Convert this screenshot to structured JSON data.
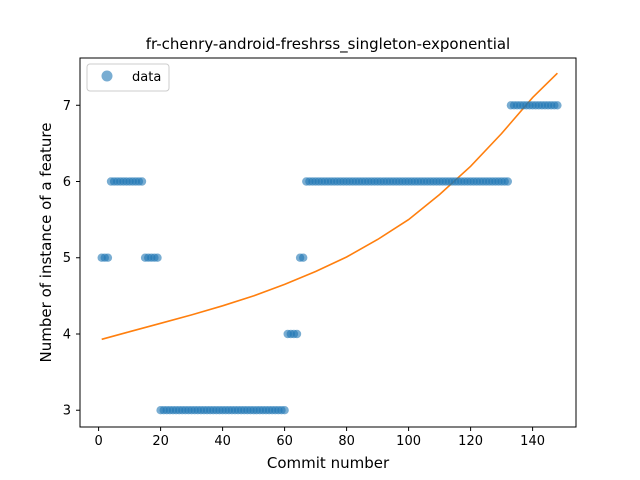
{
  "chart_data": {
    "type": "scatter",
    "title": "fr-chenry-android-freshrss_singleton-exponential",
    "xlabel": "Commit number",
    "ylabel": "Number of instance of a feature",
    "xlim": [
      -6,
      154
    ],
    "ylim": [
      2.78,
      7.62
    ],
    "xticks": [
      0,
      20,
      40,
      60,
      80,
      100,
      120,
      140
    ],
    "yticks": [
      3,
      4,
      5,
      6,
      7
    ],
    "legend": {
      "position": "top-left",
      "entries": [
        "data"
      ]
    },
    "colors": {
      "data": "#1f77b4",
      "fit": "#ff7f0e"
    },
    "series": [
      {
        "name": "data",
        "kind": "scatter",
        "segments": [
          {
            "x_from": 1,
            "x_to": 3,
            "y": 5
          },
          {
            "x_from": 4,
            "x_to": 14,
            "y": 6
          },
          {
            "x_from": 15,
            "x_to": 19,
            "y": 5
          },
          {
            "x_from": 20,
            "x_to": 60,
            "y": 3
          },
          {
            "x_from": 61,
            "x_to": 64,
            "y": 4
          },
          {
            "x_from": 65,
            "x_to": 66,
            "y": 5
          },
          {
            "x_from": 67,
            "x_to": 132,
            "y": 6
          },
          {
            "x_from": 133,
            "x_to": 148,
            "y": 7
          }
        ]
      },
      {
        "kind": "line",
        "x": [
          1,
          10,
          20,
          30,
          40,
          50,
          60,
          70,
          80,
          90,
          100,
          110,
          120,
          130,
          140,
          148
        ],
        "y": [
          3.93,
          4.03,
          4.14,
          4.25,
          4.37,
          4.5,
          4.65,
          4.82,
          5.01,
          5.24,
          5.5,
          5.83,
          6.2,
          6.63,
          7.1,
          7.42
        ]
      }
    ]
  }
}
